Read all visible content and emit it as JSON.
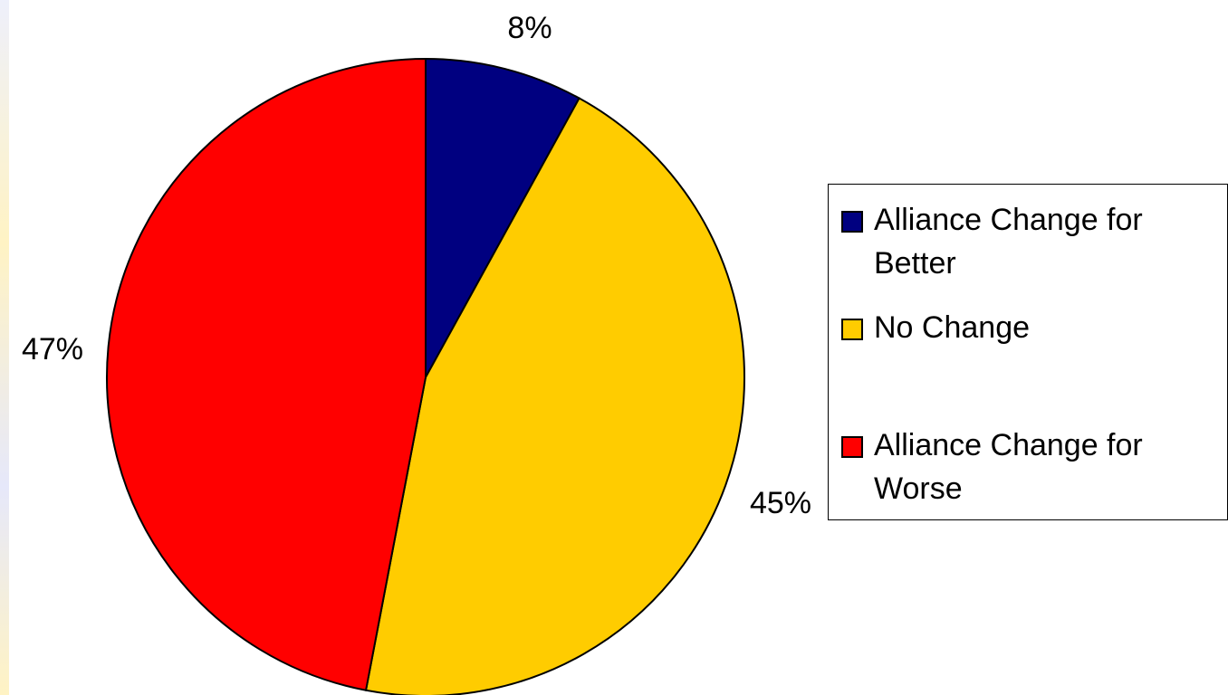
{
  "chart_data": {
    "type": "pie",
    "title": "",
    "slices": [
      {
        "label": "Alliance Change for Better",
        "value": 8,
        "value_label": "8%",
        "color": "#000080"
      },
      {
        "label": "No Change",
        "value": 45,
        "value_label": "45%",
        "color": "#ffcc00"
      },
      {
        "label": "Alliance Change for Worse",
        "value": 47,
        "value_label": "47%",
        "color": "#ff0000"
      }
    ],
    "legend_position": "right",
    "start_angle": "12 o'clock",
    "direction": "clockwise"
  }
}
